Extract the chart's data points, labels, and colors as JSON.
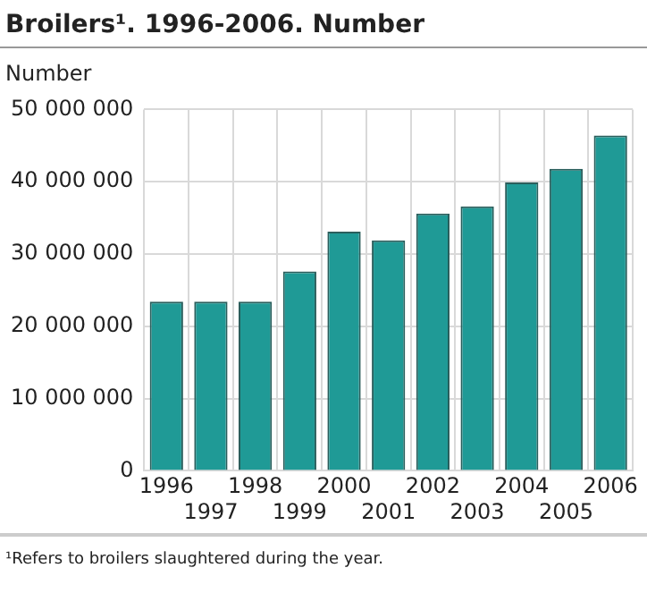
{
  "chart_data": {
    "type": "bar",
    "title": "Broilers¹. 1996-2006. Number",
    "ylabel": "Number",
    "categories": [
      "1996",
      "1997",
      "1998",
      "1999",
      "2000",
      "2001",
      "2002",
      "2003",
      "2004",
      "2005",
      "2006"
    ],
    "values": [
      23400000,
      23400000,
      23400000,
      27600000,
      33100000,
      31900000,
      35600000,
      36600000,
      39900000,
      41800000,
      46400000
    ],
    "color": "#1f9a96",
    "ylim": [
      0,
      50000000
    ],
    "yticks": [
      {
        "value": 0,
        "label": "0"
      },
      {
        "value": 10000000,
        "label": "10 000 000"
      },
      {
        "value": 20000000,
        "label": "20 000 000"
      },
      {
        "value": 30000000,
        "label": "30 000 000"
      },
      {
        "value": 40000000,
        "label": "40 000 000"
      },
      {
        "value": 50000000,
        "label": "50 000 000"
      }
    ],
    "grid": true,
    "annotations": [
      "¹Refers to broilers slaughtered during the year."
    ]
  }
}
